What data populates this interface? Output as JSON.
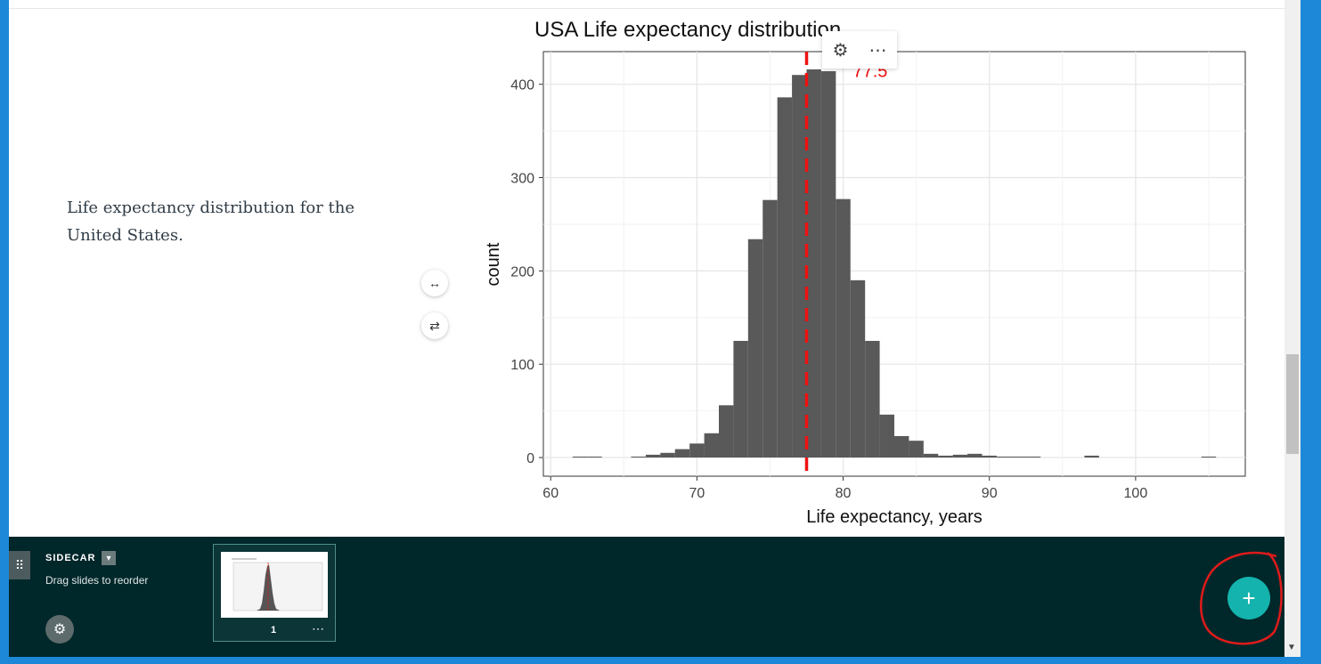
{
  "slide": {
    "description": "Life expectancy distribution for the United States."
  },
  "controls": {
    "resize_icon": "double-arrow-icon",
    "swap_icon": "swap-arrows-icon"
  },
  "chart_popup": {
    "settings_icon": "gear-icon",
    "more_label": "⋯"
  },
  "chart_data": {
    "type": "bar",
    "title": "USA Life expectancy distribution",
    "xlabel": "Life expectancy, years",
    "ylabel": "count",
    "xlim": [
      59.5,
      107.5
    ],
    "ylim": [
      -20,
      435
    ],
    "xticks": [
      60,
      70,
      80,
      90,
      100
    ],
    "yticks": [
      0,
      100,
      200,
      300,
      400
    ],
    "bin_width": 1,
    "bins": [
      {
        "x": 62,
        "count": 1
      },
      {
        "x": 63,
        "count": 1
      },
      {
        "x": 66,
        "count": 1
      },
      {
        "x": 67,
        "count": 3
      },
      {
        "x": 68,
        "count": 5
      },
      {
        "x": 69,
        "count": 9
      },
      {
        "x": 70,
        "count": 15
      },
      {
        "x": 71,
        "count": 26
      },
      {
        "x": 72,
        "count": 56
      },
      {
        "x": 73,
        "count": 125
      },
      {
        "x": 74,
        "count": 234
      },
      {
        "x": 75,
        "count": 276
      },
      {
        "x": 76,
        "count": 386
      },
      {
        "x": 77,
        "count": 410
      },
      {
        "x": 78,
        "count": 416
      },
      {
        "x": 79,
        "count": 414
      },
      {
        "x": 80,
        "count": 277
      },
      {
        "x": 81,
        "count": 190
      },
      {
        "x": 82,
        "count": 125
      },
      {
        "x": 83,
        "count": 46
      },
      {
        "x": 84,
        "count": 23
      },
      {
        "x": 85,
        "count": 18
      },
      {
        "x": 86,
        "count": 4
      },
      {
        "x": 87,
        "count": 2
      },
      {
        "x": 88,
        "count": 3
      },
      {
        "x": 89,
        "count": 4
      },
      {
        "x": 90,
        "count": 2
      },
      {
        "x": 91,
        "count": 1
      },
      {
        "x": 92,
        "count": 1
      },
      {
        "x": 93,
        "count": 1
      },
      {
        "x": 97,
        "count": 2
      },
      {
        "x": 105,
        "count": 1
      }
    ],
    "reference_line": {
      "x": 77.5,
      "label": "77.5",
      "color": "#ee1111"
    },
    "bar_color": "#595959",
    "grid": true,
    "legend": "none"
  },
  "sidecar": {
    "title": "SIDECAR",
    "subtitle": "Drag slides to reorder",
    "caret_icon": "chevron-down-icon",
    "settings_icon": "gear-icon",
    "drag_icon": "drag-handle-icon"
  },
  "slide_thumbnail": {
    "number": "1",
    "more_label": "⋯"
  },
  "add_button": {
    "label": "+",
    "highlight_color": "#e01b1b"
  },
  "colors": {
    "panel_bg": "#00272a",
    "accent": "#14b3ad",
    "desktop_blue": "#1e88d8"
  }
}
